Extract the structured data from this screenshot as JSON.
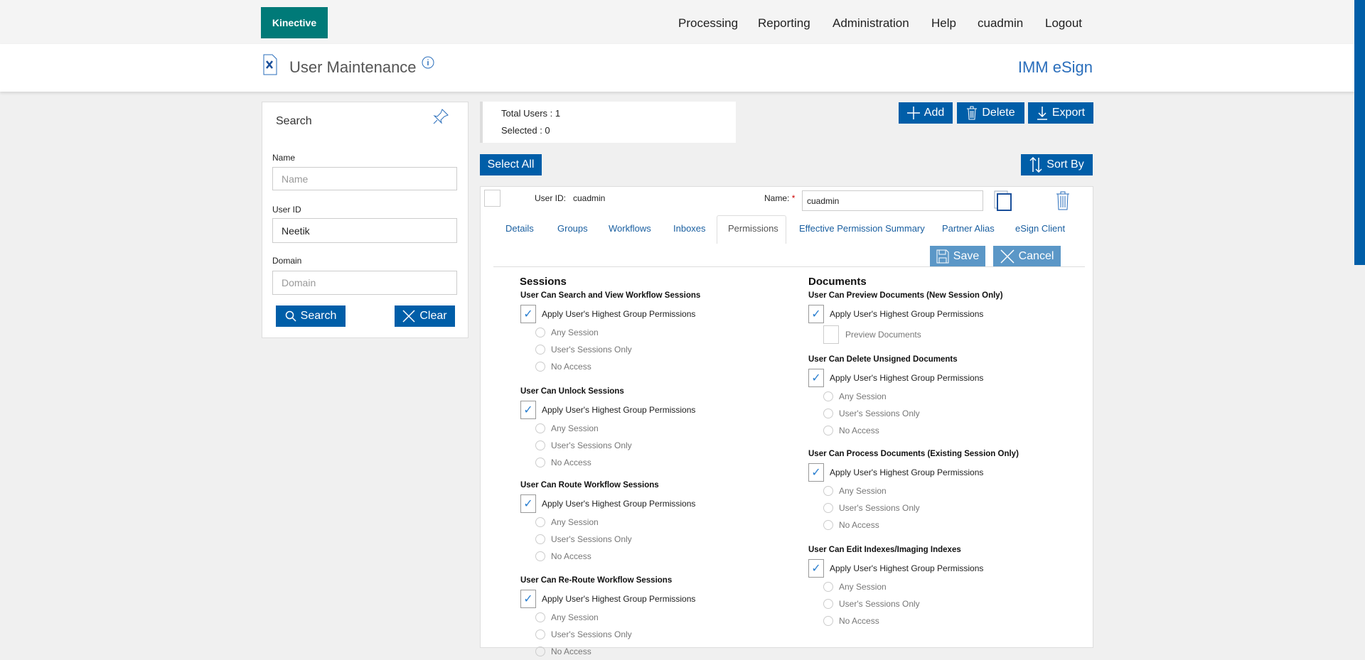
{
  "header": {
    "logo": "Kinective",
    "nav": [
      "Processing",
      "Reporting",
      "Administration",
      "Help",
      "cuadmin",
      "Logout"
    ]
  },
  "subheader": {
    "title": "User Maintenance",
    "app_name": "IMM eSign"
  },
  "search": {
    "title": "Search",
    "fields": [
      {
        "label": "Name",
        "placeholder": "Name",
        "value": ""
      },
      {
        "label": "User ID",
        "placeholder": "",
        "value": "Neetik"
      },
      {
        "label": "Domain",
        "placeholder": "Domain",
        "value": ""
      }
    ],
    "search_label": "Search",
    "clear_label": "Clear"
  },
  "stats": {
    "total": "Total Users : 1",
    "selected": "Selected : 0"
  },
  "toolbar": {
    "add": "Add",
    "delete": "Delete",
    "export": "Export",
    "select_all": "Select All",
    "sort_by": "Sort By"
  },
  "user": {
    "user_id_label": "User ID:",
    "user_id": "cuadmin",
    "name_label": "Name:",
    "required": "*",
    "name_value": "cuadmin"
  },
  "tabs": [
    "Details",
    "Groups",
    "Workflows",
    "Inboxes",
    "Permissions",
    "Effective Permission Summary",
    "Partner Alias",
    "eSign Client"
  ],
  "active_tab": "Permissions",
  "actions": {
    "save": "Save",
    "cancel": "Cancel"
  },
  "permissions": {
    "apply_label": "Apply User's Highest Group Permissions",
    "options": [
      "Any Session",
      "User's Sessions Only",
      "No Access"
    ],
    "sessions": {
      "title": "Sessions",
      "groups": [
        {
          "title": "User Can Search and View Workflow Sessions",
          "checked": true
        },
        {
          "title": "User Can Unlock Sessions",
          "checked": true
        },
        {
          "title": "User Can Route Workflow Sessions",
          "checked": true
        },
        {
          "title": "User Can Re-Route Workflow Sessions",
          "checked": true
        }
      ]
    },
    "documents": {
      "title": "Documents",
      "groups": [
        {
          "title": "User Can Preview Documents (New Session Only)",
          "checked": true,
          "extra_checkbox": "Preview Documents"
        },
        {
          "title": "User Can Delete Unsigned Documents",
          "checked": true
        },
        {
          "title": "User Can Process Documents (Existing Session Only)",
          "checked": true
        },
        {
          "title": "User Can Edit Indexes/Imaging Indexes",
          "checked": true
        }
      ]
    }
  },
  "colors": {
    "brand": "#007a78",
    "primary": "#005ea8",
    "disabled_button": "#5b97c7",
    "link": "#1a5fa0"
  }
}
